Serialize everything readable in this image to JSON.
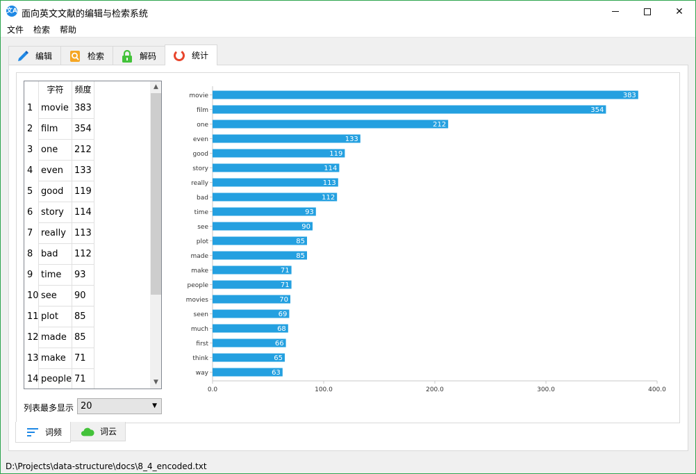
{
  "window": {
    "title": "面向英文文献的编辑与检索系统",
    "app_icon_text": "文A",
    "minimize_label": "—",
    "close_label": "✕"
  },
  "menu": [
    "文件",
    "检索",
    "帮助"
  ],
  "tabs": [
    {
      "label": "编辑",
      "icon": "pencil-icon",
      "color": "#1e88e5"
    },
    {
      "label": "检索",
      "icon": "search-doc-icon",
      "color": "#f5a623"
    },
    {
      "label": "解码",
      "icon": "lock-icon",
      "color": "#43c23a"
    },
    {
      "label": "统计",
      "icon": "ring-chart-icon",
      "color": "#e8452c",
      "active": true
    }
  ],
  "table": {
    "headers": [
      "",
      "字符",
      "频度"
    ],
    "rows": [
      {
        "index": "1",
        "word": "movie",
        "freq": "383"
      },
      {
        "index": "2",
        "word": "film",
        "freq": "354"
      },
      {
        "index": "3",
        "word": "one",
        "freq": "212"
      },
      {
        "index": "4",
        "word": "even",
        "freq": "133"
      },
      {
        "index": "5",
        "word": "good",
        "freq": "119"
      },
      {
        "index": "6",
        "word": "story",
        "freq": "114"
      },
      {
        "index": "7",
        "word": "really",
        "freq": "113"
      },
      {
        "index": "8",
        "word": "bad",
        "freq": "112"
      },
      {
        "index": "9",
        "word": "time",
        "freq": "93"
      },
      {
        "index": "10",
        "word": "see",
        "freq": "90"
      },
      {
        "index": "11",
        "word": "plot",
        "freq": "85"
      },
      {
        "index": "12",
        "word": "made",
        "freq": "85"
      },
      {
        "index": "13",
        "word": "make",
        "freq": "71"
      },
      {
        "index": "14",
        "word": "people",
        "freq": "71"
      }
    ]
  },
  "limit": {
    "label": "列表最多显示",
    "value": "20"
  },
  "chart_data": {
    "type": "bar",
    "orientation": "horizontal",
    "categories": [
      "movie",
      "film",
      "one",
      "even",
      "good",
      "story",
      "really",
      "bad",
      "time",
      "see",
      "plot",
      "made",
      "make",
      "people",
      "movies",
      "seen",
      "much",
      "first",
      "think",
      "way"
    ],
    "values": [
      383,
      354,
      212,
      133,
      119,
      114,
      113,
      112,
      93,
      90,
      85,
      85,
      71,
      71,
      70,
      69,
      68,
      66,
      65,
      63
    ],
    "xlim": [
      0,
      400
    ],
    "xticks": [
      "0.0",
      "100.0",
      "200.0",
      "300.0",
      "400.0"
    ],
    "bar_color": "#24a0e0",
    "grid": false,
    "data_labels": true
  },
  "bottom_tabs": [
    {
      "label": "词频",
      "icon": "bars-icon",
      "color": "#1e88e5",
      "active": true
    },
    {
      "label": "词云",
      "icon": "cloud-icon",
      "color": "#43c23a"
    }
  ],
  "status": {
    "path": "D:\\Projects\\data-structure\\docs\\8_4_encoded.txt"
  }
}
